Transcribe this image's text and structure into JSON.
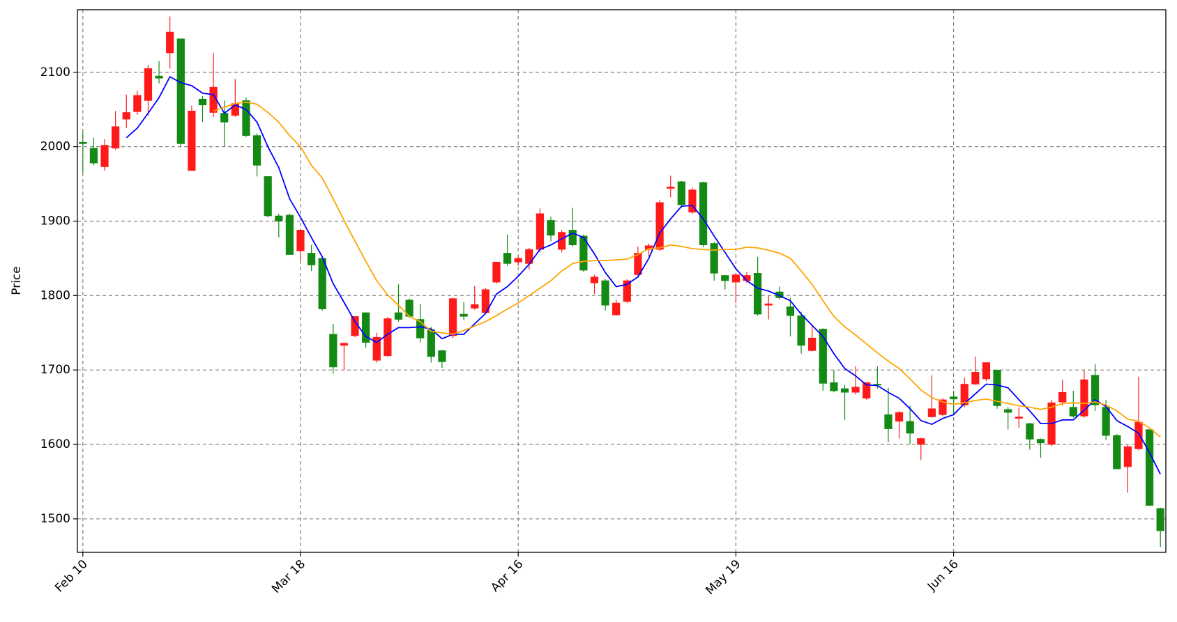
{
  "chart_data": {
    "type": "candlestick",
    "y_label": "Price",
    "categories": [
      "Feb 10",
      null,
      null,
      null,
      null,
      null,
      null,
      null,
      null,
      null,
      null,
      null,
      null,
      null,
      null,
      null,
      null,
      null,
      null,
      null,
      "Mar 18",
      null,
      null,
      null,
      null,
      null,
      null,
      null,
      null,
      null,
      null,
      null,
      null,
      null,
      null,
      null,
      null,
      null,
      null,
      null,
      "Apr 16",
      null,
      null,
      null,
      null,
      null,
      null,
      null,
      null,
      null,
      null,
      null,
      null,
      null,
      null,
      null,
      null,
      null,
      null,
      null,
      "May 19",
      null,
      null,
      null,
      null,
      null,
      null,
      null,
      null,
      null,
      null,
      null,
      null,
      null,
      null,
      null,
      null,
      null,
      null,
      null,
      "Jun 16",
      null,
      null,
      null,
      null,
      null,
      null,
      null,
      null,
      null,
      null,
      null,
      null,
      null,
      null,
      null,
      null,
      null,
      null,
      null
    ],
    "open": [
      2006,
      1998,
      1973,
      1998,
      2037,
      2047,
      2062,
      2095,
      2126,
      2145,
      1968,
      2064,
      2046,
      2045,
      2042,
      2062,
      2015,
      1960,
      1907,
      1908,
      1860,
      1857,
      1850,
      1748,
      1733,
      1746,
      1777,
      1713,
      1719,
      1777,
      1794,
      1768,
      1754,
      1726,
      1746,
      1775,
      1783,
      1777,
      1818,
      1857,
      1845,
      1843,
      1862,
      1901,
      1862,
      1888,
      1880,
      1817,
      1820,
      1774,
      1792,
      1828,
      1862,
      1862,
      1944,
      1953,
      1912,
      1952,
      1870,
      1827,
      1818,
      1820,
      1830,
      1787,
      1805,
      1785,
      1773,
      1726,
      1755,
      1683,
      1675,
      1670,
      1662,
      1681,
      1640,
      1631,
      1631,
      1600,
      1637,
      1640,
      1664,
      1653,
      1681,
      1688,
      1700,
      1647,
      1635,
      1628,
      1607,
      1600,
      1657,
      1650,
      1638,
      1693,
      1650,
      1612,
      1570,
      1594,
      1620,
      1514
    ],
    "high": [
      2020,
      2012,
      2010,
      2048,
      2070,
      2075,
      2110,
      2115,
      2175,
      2145,
      2055,
      2068,
      2126,
      2062,
      2091,
      2066,
      2018,
      1960,
      1910,
      1910,
      1890,
      1868,
      1852,
      1762,
      1737,
      1772,
      1777,
      1750,
      1771,
      1815,
      1796,
      1789,
      1758,
      1727,
      1797,
      1791,
      1813,
      1810,
      1845,
      1882,
      1852,
      1864,
      1917,
      1906,
      1888,
      1918,
      1882,
      1828,
      1822,
      1794,
      1822,
      1866,
      1870,
      1928,
      1961,
      1954,
      1945,
      1953,
      1872,
      1828,
      1830,
      1832,
      1852,
      1800,
      1812,
      1797,
      1778,
      1761,
      1756,
      1700,
      1680,
      1705,
      1684,
      1705,
      1676,
      1645,
      1652,
      1609,
      1693,
      1662,
      1672,
      1690,
      1718,
      1710,
      1700,
      1650,
      1650,
      1629,
      1608,
      1660,
      1687,
      1672,
      1700,
      1708,
      1660,
      1614,
      1599,
      1691,
      1620,
      1515
    ],
    "low": [
      1965,
      1975,
      1968,
      1996,
      2025,
      2043,
      2042,
      2085,
      2105,
      2000,
      1968,
      2033,
      2040,
      2000,
      2040,
      2013,
      1960,
      1905,
      1878,
      1855,
      1846,
      1833,
      1780,
      1695,
      1700,
      1744,
      1730,
      1710,
      1718,
      1765,
      1770,
      1737,
      1710,
      1703,
      1743,
      1767,
      1781,
      1775,
      1816,
      1840,
      1840,
      1835,
      1858,
      1873,
      1858,
      1866,
      1832,
      1802,
      1780,
      1773,
      1790,
      1825,
      1853,
      1860,
      1932,
      1918,
      1910,
      1865,
      1820,
      1808,
      1790,
      1817,
      1773,
      1768,
      1795,
      1745,
      1722,
      1725,
      1672,
      1670,
      1633,
      1667,
      1660,
      1675,
      1603,
      1608,
      1600,
      1579,
      1636,
      1638,
      1640,
      1650,
      1680,
      1685,
      1648,
      1620,
      1622,
      1593,
      1582,
      1598,
      1652,
      1636,
      1636,
      1645,
      1606,
      1567,
      1535,
      1592,
      1518,
      1462
    ],
    "close": [
      2004,
      1978,
      2002,
      2027,
      2046,
      2069,
      2105,
      2092,
      2154,
      2004,
      2048,
      2056,
      2080,
      2033,
      2058,
      2015,
      1975,
      1907,
      1900,
      1855,
      1888,
      1841,
      1782,
      1704,
      1736,
      1772,
      1737,
      1744,
      1769,
      1768,
      1772,
      1743,
      1718,
      1711,
      1796,
      1772,
      1788,
      1808,
      1845,
      1843,
      1850,
      1862,
      1910,
      1881,
      1885,
      1868,
      1834,
      1825,
      1787,
      1790,
      1820,
      1857,
      1867,
      1925,
      1946,
      1922,
      1942,
      1868,
      1830,
      1820,
      1828,
      1827,
      1775,
      1789,
      1797,
      1773,
      1733,
      1743,
      1682,
      1672,
      1670,
      1677,
      1683,
      1680,
      1621,
      1643,
      1615,
      1608,
      1648,
      1660,
      1661,
      1681,
      1697,
      1710,
      1652,
      1643,
      1637,
      1607,
      1602,
      1656,
      1670,
      1638,
      1687,
      1653,
      1612,
      1567,
      1597,
      1630,
      1518,
      1484
    ],
    "up_color": "#ff1a1a",
    "down_color": "#138a13",
    "lines": [
      {
        "color": "#0000ff",
        "values": [
          null,
          null,
          null,
          null,
          2012,
          2025,
          2045,
          2066,
          2094,
          2086,
          2082,
          2072,
          2070,
          2045,
          2056,
          2050,
          2033,
          2000,
          1972,
          1930,
          1905,
          1878,
          1852,
          1816,
          1791,
          1765,
          1745,
          1737,
          1748,
          1757,
          1757,
          1758,
          1755,
          1742,
          1748,
          1748,
          1762,
          1776,
          1802,
          1812,
          1826,
          1842,
          1862,
          1868,
          1876,
          1884,
          1878,
          1856,
          1831,
          1812,
          1815,
          1825,
          1850,
          1884,
          1903,
          1920,
          1921,
          1903,
          1880,
          1858,
          1836,
          1820,
          1810,
          1806,
          1800,
          1793,
          1775,
          1760,
          1745,
          1722,
          1702,
          1692,
          1680,
          1679,
          1670,
          1662,
          1648,
          1632,
          1627,
          1635,
          1640,
          1655,
          1668,
          1681,
          1680,
          1676,
          1660,
          1645,
          1628,
          1628,
          1633,
          1633,
          1646,
          1660,
          1651,
          1632,
          1624,
          1615,
          1589,
          1560
        ]
      },
      {
        "color": "#ffa500",
        "values": [
          null,
          null,
          null,
          null,
          null,
          null,
          null,
          null,
          null,
          null,
          null,
          null,
          2048,
          2053,
          2058,
          2060,
          2057,
          2046,
          2033,
          2015,
          2000,
          1975,
          1958,
          1930,
          1901,
          1873,
          1846,
          1820,
          1801,
          1787,
          1772,
          1765,
          1752,
          1750,
          1748,
          1753,
          1759,
          1765,
          1773,
          1782,
          1790,
          1800,
          1810,
          1820,
          1833,
          1843,
          1846,
          1847,
          1847,
          1848,
          1849,
          1855,
          1863,
          1864,
          1868,
          1866,
          1863,
          1862,
          1861,
          1862,
          1862,
          1865,
          1864,
          1861,
          1857,
          1850,
          1833,
          1815,
          1793,
          1772,
          1758,
          1747,
          1735,
          1723,
          1712,
          1702,
          1688,
          1673,
          1663,
          1657,
          1654,
          1656,
          1659,
          1661,
          1658,
          1655,
          1652,
          1650,
          1647,
          1650,
          1655,
          1656,
          1655,
          1657,
          1653,
          1645,
          1634,
          1631,
          1622,
          1610
        ]
      }
    ],
    "ylim": [
      1455,
      2184
    ],
    "yticks": [
      1500,
      1600,
      1700,
      1800,
      1900,
      2000,
      2100
    ],
    "grid": true
  }
}
